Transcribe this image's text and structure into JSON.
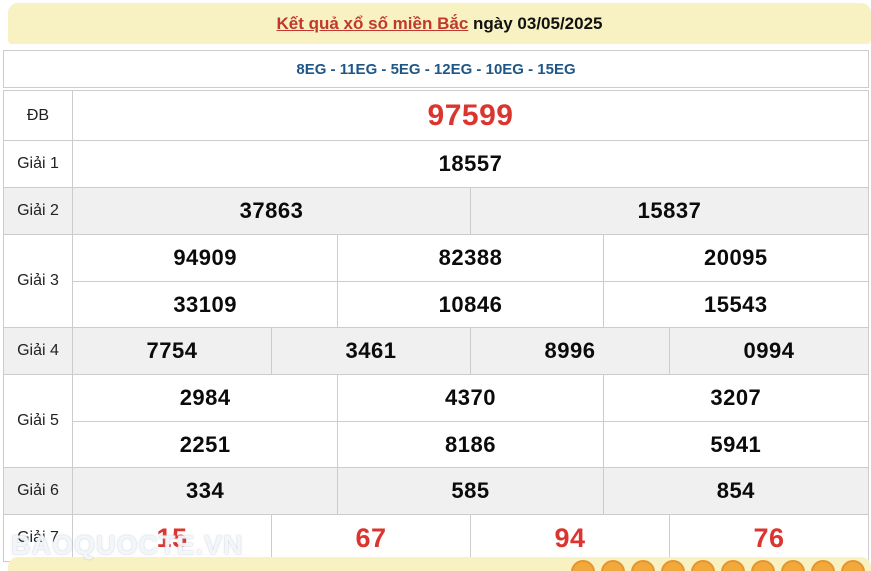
{
  "banner": {
    "title": "Kết quả xổ số miền Bắc",
    "date": " ngày 03/05/2025"
  },
  "codes": {
    "text": "8EG - 11EG - 5EG - 12EG - 10EG - 15EG"
  },
  "results": {
    "rows": [
      {
        "label": "ĐB",
        "value_color": "red",
        "groups": [
          [
            "97599"
          ]
        ]
      },
      {
        "label": "Giải 1",
        "value_color": "black",
        "groups": [
          [
            "18557"
          ]
        ]
      },
      {
        "label": "Giải 2",
        "value_color": "black",
        "groups": [
          [
            "37863",
            "15837"
          ]
        ]
      },
      {
        "label": "Giải 3",
        "value_color": "black",
        "groups": [
          [
            "94909",
            "82388",
            "20095"
          ],
          [
            "33109",
            "10846",
            "15543"
          ]
        ]
      },
      {
        "label": "Giải 4",
        "value_color": "black",
        "groups": [
          [
            "7754",
            "3461",
            "8996",
            "0994"
          ]
        ]
      },
      {
        "label": "Giải 5",
        "value_color": "black",
        "groups": [
          [
            "2984",
            "4370",
            "3207"
          ],
          [
            "2251",
            "8186",
            "5941"
          ]
        ]
      },
      {
        "label": "Giải 6",
        "value_color": "black",
        "groups": [
          [
            "334",
            "585",
            "854"
          ]
        ]
      },
      {
        "label": "Giải 7",
        "value_color": "red",
        "groups": [
          [
            "15",
            "67",
            "94",
            "76"
          ]
        ]
      }
    ]
  },
  "watermark": {
    "text": "BAOQUOCTE.VN"
  },
  "decorations": {
    "ball_count": 10
  },
  "colors": {
    "banner_bg": "#F8F1C2",
    "title_red": "#C0392B",
    "codes_blue": "#1F5688",
    "special_red": "#DB3530",
    "row_shade": "#F0F0F0",
    "border": "#CCCCCC",
    "ball_fill": "#F2A93B",
    "ball_border": "#E6952E"
  }
}
